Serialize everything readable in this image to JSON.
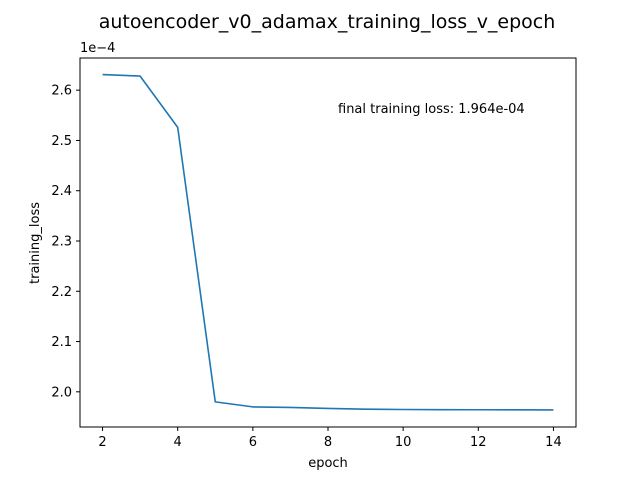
{
  "chart_data": {
    "type": "line",
    "title": "autoencoder_v0_adamax_training_loss_v_epoch",
    "xlabel": "epoch",
    "ylabel": "training_loss",
    "y_offset_label": "1e−4",
    "annotation": "final training loss: 1.964e-04",
    "xlim": [
      1.4,
      14.6
    ],
    "ylim": [
      1.93,
      2.664
    ],
    "x_ticks": [
      2,
      4,
      6,
      8,
      10,
      12,
      14
    ],
    "x_tick_labels": [
      "2",
      "4",
      "6",
      "8",
      "10",
      "12",
      "14"
    ],
    "y_ticks": [
      2.0,
      2.1,
      2.2,
      2.3,
      2.4,
      2.5,
      2.6
    ],
    "y_tick_labels": [
      "2.0",
      "2.1",
      "2.2",
      "2.3",
      "2.4",
      "2.5",
      "2.6"
    ],
    "y_unit_scale": 0.0001,
    "grid": false,
    "series": [
      {
        "color": "#1f77b4",
        "x": [
          2,
          3,
          4,
          5,
          6,
          7,
          8,
          9,
          10,
          11,
          12,
          13,
          14
        ],
        "y": [
          2.631,
          2.628,
          2.526,
          1.98,
          1.97,
          1.969,
          1.967,
          1.9655,
          1.9648,
          1.9645,
          1.9643,
          1.9642,
          1.964
        ]
      }
    ]
  }
}
